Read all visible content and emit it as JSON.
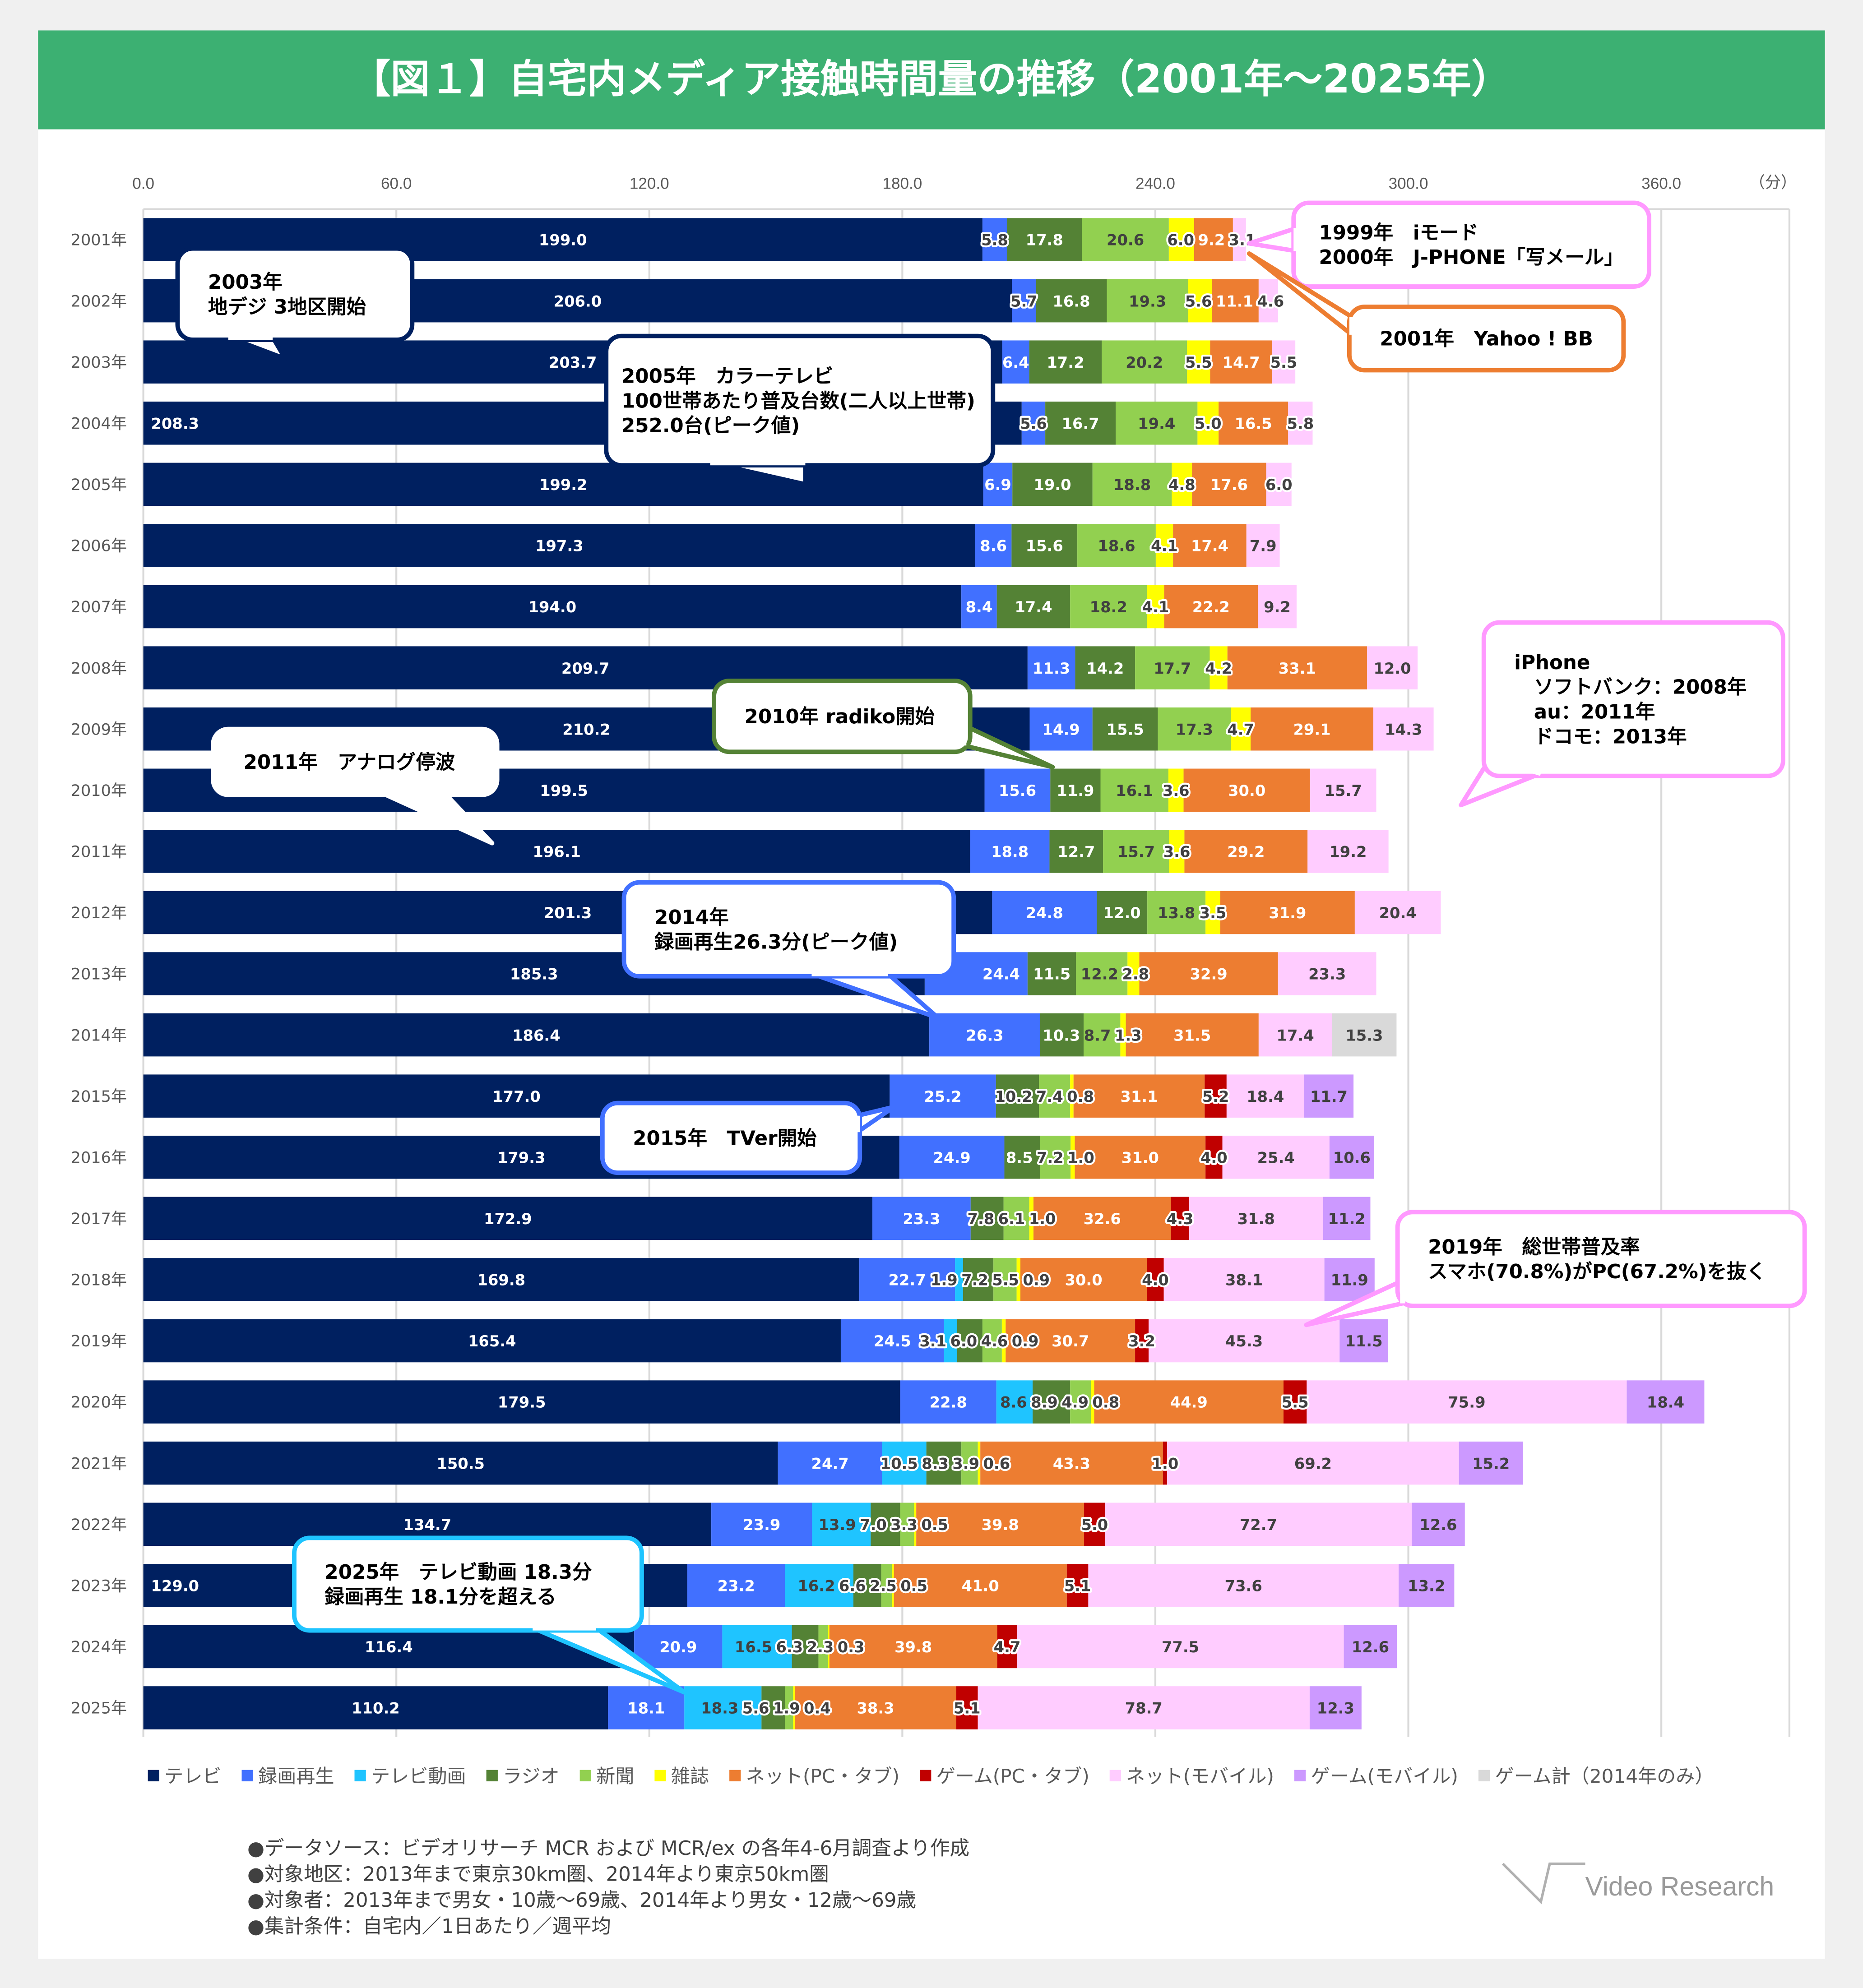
{
  "header": {
    "title": "【図１】自宅内メディア接触時間量の推移（2001年～2025年）",
    "color": "#3cb072"
  },
  "chart_data": {
    "type": "bar",
    "orientation": "horizontal",
    "stacked": true,
    "unit_label": "（分）",
    "xlim": [
      0,
      360
    ],
    "xticks": [
      "0.0",
      "60.0",
      "120.0",
      "180.0",
      "240.0",
      "300.0",
      "360.0"
    ],
    "xtick_values": [
      0,
      60,
      120,
      180,
      240,
      300,
      360
    ],
    "grid": true,
    "legend_position": "bottom",
    "categories": [
      "2001年",
      "2002年",
      "2003年",
      "2004年",
      "2005年",
      "2006年",
      "2007年",
      "2008年",
      "2009年",
      "2010年",
      "2011年",
      "2012年",
      "2013年",
      "2014年",
      "2015年",
      "2016年",
      "2017年",
      "2018年",
      "2019年",
      "2020年",
      "2021年",
      "2022年",
      "2023年",
      "2024年",
      "2025年"
    ],
    "series": [
      {
        "name": "テレビ",
        "color": "#002060",
        "label_color": "#ffffff",
        "values": [
          199.0,
          206.0,
          203.7,
          208.3,
          199.2,
          197.3,
          194.0,
          209.7,
          210.2,
          199.5,
          196.1,
          201.3,
          185.3,
          186.4,
          177.0,
          179.3,
          172.9,
          169.8,
          165.4,
          179.5,
          150.5,
          134.7,
          129.0,
          116.4,
          110.2
        ]
      },
      {
        "name": "録画再生",
        "color": "#4170ff",
        "label_color": "#ffffff",
        "values": [
          5.8,
          5.7,
          6.4,
          5.6,
          6.9,
          8.6,
          8.4,
          11.3,
          14.9,
          15.6,
          18.8,
          24.8,
          24.4,
          26.3,
          25.2,
          24.9,
          23.3,
          22.7,
          24.5,
          22.8,
          24.7,
          23.9,
          23.2,
          20.9,
          18.1
        ]
      },
      {
        "name": "テレビ動画",
        "color": "#1fc4ff",
        "label_color": "#404040",
        "values": [
          null,
          null,
          null,
          null,
          null,
          null,
          null,
          null,
          null,
          null,
          null,
          null,
          null,
          null,
          null,
          null,
          null,
          1.9,
          3.1,
          8.6,
          10.5,
          13.9,
          16.2,
          16.5,
          18.3
        ]
      },
      {
        "name": "ラジオ",
        "color": "#548235",
        "label_color": "#ffffff",
        "values": [
          17.8,
          16.8,
          17.2,
          16.7,
          19.0,
          15.6,
          17.4,
          14.2,
          15.5,
          11.9,
          12.7,
          12.0,
          11.5,
          10.3,
          10.2,
          8.5,
          7.8,
          7.2,
          6.0,
          8.9,
          8.3,
          7.0,
          6.6,
          6.3,
          5.6
        ]
      },
      {
        "name": "新聞",
        "color": "#92d050",
        "label_color": "#404040",
        "values": [
          20.6,
          19.3,
          20.2,
          19.4,
          18.8,
          18.6,
          18.2,
          17.7,
          17.3,
          16.1,
          15.7,
          13.8,
          12.2,
          8.7,
          7.4,
          7.2,
          6.1,
          5.5,
          4.6,
          4.9,
          3.9,
          3.3,
          2.5,
          2.3,
          1.9
        ]
      },
      {
        "name": "雑誌",
        "color": "#ffff00",
        "label_color": "#404040",
        "values": [
          6.0,
          5.6,
          5.5,
          5.0,
          4.8,
          4.1,
          4.1,
          4.2,
          4.7,
          3.6,
          3.6,
          3.5,
          2.8,
          1.3,
          0.8,
          1.0,
          1.0,
          0.9,
          0.9,
          0.8,
          0.6,
          0.5,
          0.5,
          0.3,
          0.4
        ]
      },
      {
        "name": "ネット(PC・タブ)",
        "color": "#ed7d31",
        "label_color": "#ffffff",
        "values": [
          9.2,
          11.1,
          14.7,
          16.5,
          17.6,
          17.4,
          22.2,
          33.1,
          29.1,
          30.0,
          29.2,
          31.9,
          32.9,
          31.5,
          31.1,
          31.0,
          32.6,
          30.0,
          30.7,
          44.9,
          43.3,
          39.8,
          41.0,
          39.8,
          38.3
        ]
      },
      {
        "name": "ゲーム(PC・タブ)",
        "color": "#c00000",
        "label_color": "#ffffff",
        "values": [
          null,
          null,
          null,
          null,
          null,
          null,
          null,
          null,
          null,
          null,
          null,
          null,
          null,
          null,
          5.2,
          4.0,
          4.3,
          4.0,
          3.2,
          5.5,
          1.0,
          5.0,
          5.1,
          4.7,
          5.1
        ]
      },
      {
        "name": "ネット(モバイル)",
        "color": "#ffccff",
        "label_color": "#404040",
        "values": [
          3.1,
          4.6,
          5.5,
          5.8,
          6.0,
          7.9,
          9.2,
          12.0,
          14.3,
          15.7,
          19.2,
          20.4,
          23.3,
          17.4,
          18.4,
          25.4,
          31.8,
          38.1,
          45.3,
          75.9,
          69.2,
          72.7,
          73.6,
          77.5,
          78.7
        ]
      },
      {
        "name": "ゲーム(モバイル)",
        "color": "#cc99ff",
        "label_color": "#404040",
        "values": [
          null,
          null,
          null,
          null,
          null,
          null,
          null,
          null,
          null,
          null,
          null,
          null,
          null,
          null,
          11.7,
          10.6,
          11.2,
          11.9,
          11.5,
          18.4,
          15.2,
          12.6,
          13.2,
          12.6,
          12.3
        ]
      },
      {
        "name": "ゲーム計（2014年のみ）",
        "color": "#d9d9d9",
        "label_color": "#404040",
        "values": [
          null,
          null,
          null,
          null,
          null,
          null,
          null,
          null,
          null,
          null,
          null,
          null,
          null,
          15.3,
          null,
          null,
          null,
          null,
          null,
          null,
          null,
          null,
          null,
          null,
          null
        ]
      }
    ]
  },
  "callouts": [
    {
      "lines": [
        "2003年",
        "地デジ 3地区開始"
      ],
      "color": "#002060"
    },
    {
      "lines": [
        "2005年　カラーテレビ",
        "100世帯あたり普及台数(二人以上世帯)",
        "252.0台(ピーク値)"
      ],
      "color": "#002060"
    },
    {
      "lines": [
        "1999年　iモード",
        "2000年　J-PHONE「写メール」"
      ],
      "color": "#ff99ff"
    },
    {
      "lines": [
        "2001年　Yahoo ! BB"
      ],
      "color": "#ed7d31"
    },
    {
      "lines": [
        "2010年 radiko開始"
      ],
      "color": "#548235"
    },
    {
      "lines": [
        "2011年　アナログ停波"
      ],
      "color": "#ffffff"
    },
    {
      "lines": [
        "iPhone",
        "　ソフトバンク：2008年",
        "　au：2011年",
        "　ドコモ：2013年"
      ],
      "color": "#ff99ff"
    },
    {
      "lines": [
        "2014年",
        "録画再生26.3分(ピーク値)"
      ],
      "color": "#4170ff"
    },
    {
      "lines": [
        "2015年　TVer開始"
      ],
      "color": "#4170ff"
    },
    {
      "lines": [
        "2019年　総世帯普及率",
        "スマホ(70.8%)がPC(67.2%)を抜く"
      ],
      "color": "#ff99ff"
    },
    {
      "lines": [
        "2025年　テレビ動画 18.3分",
        "録画再生 18.1分を超える"
      ],
      "color": "#1fc4ff"
    }
  ],
  "notes": [
    "●データソース：ビデオリサーチ MCR および MCR/ex の各年4-6月調査より作成",
    "●対象地区：2013年まで東京30km圏、2014年より東京50km圏",
    "●対象者：2013年まで男女・10歳～69歳、2014年より男女・12歳～69歳",
    "●集計条件：自宅内／1日あたり／週平均"
  ],
  "logo": {
    "text": "Video Research"
  }
}
